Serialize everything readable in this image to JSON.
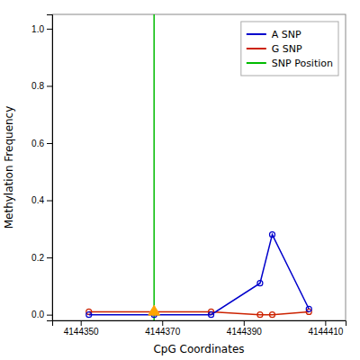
{
  "chart_data": {
    "type": "line",
    "x_label": "CpG Coordinates",
    "y_label": "Methylation Frequency",
    "x": [
      4144352,
      4144368,
      4144382,
      4144394,
      4144397,
      4144406
    ],
    "series": [
      {
        "name": "A SNP",
        "color": "#0000CC",
        "marker": "circle",
        "line_style": "solid",
        "values": [
          0.0,
          0.0,
          0.0,
          0.11,
          0.28,
          0.02
        ]
      },
      {
        "name": "G SNP",
        "color": "#CC2200",
        "marker": "circle",
        "line_style": "solid",
        "values": [
          0.01,
          0.01,
          0.01,
          0.0,
          0.0,
          0.01
        ]
      }
    ],
    "vline": {
      "name": "SNP Position",
      "x": 4144368,
      "color": "#00BB00"
    },
    "markers": [
      {
        "x": 4144368,
        "y": 0.01,
        "color": "#FFA500",
        "marker": "triangle"
      }
    ],
    "xlim": [
      4144343,
      4144415
    ],
    "ylim": [
      -0.02,
      1.05
    ],
    "xticks": [
      4144350,
      4144370,
      4144390,
      4144410
    ],
    "yticks": [
      {
        "value": 0.0,
        "label": "0.0"
      },
      0.2,
      0.4,
      0.6,
      0.8,
      {
        "value": 1.0,
        "label": "1.0"
      }
    ],
    "grid": false,
    "legend": "upper right"
  }
}
